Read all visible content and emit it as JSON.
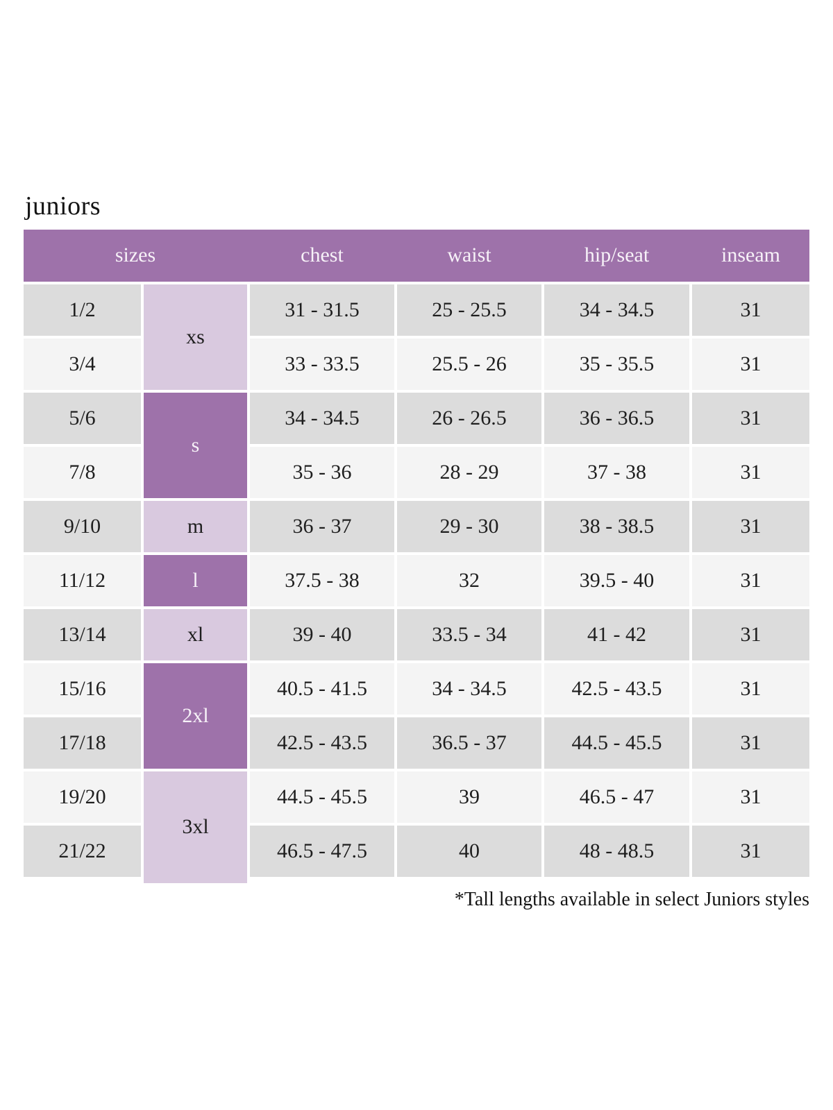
{
  "title": "juniors",
  "footnote": "*Tall lengths available in select Juniors styles",
  "colors": {
    "header_bg": "#9e72aa",
    "size_dark_bg": "#9e72aa",
    "size_light_bg": "#d9c9df",
    "row_gray": "#dcdcdc",
    "row_light": "#f4f4f4",
    "header_text": "#f7f2f8",
    "body_text": "#1e1e1e"
  },
  "table": {
    "headers": [
      "sizes",
      "chest",
      "waist",
      "hip/seat",
      "inseam"
    ],
    "size_groups": [
      {
        "label": "xs",
        "rows_spanned": 2,
        "shade": "light"
      },
      {
        "label": "s",
        "rows_spanned": 2,
        "shade": "dark"
      },
      {
        "label": "m",
        "rows_spanned": 1,
        "shade": "light"
      },
      {
        "label": "l",
        "rows_spanned": 1,
        "shade": "dark"
      },
      {
        "label": "xl",
        "rows_spanned": 1,
        "shade": "light"
      },
      {
        "label": "2xl",
        "rows_spanned": 2,
        "shade": "dark"
      },
      {
        "label": "3xl",
        "rows_spanned": 2,
        "shade": "light"
      }
    ],
    "rows": [
      {
        "size": "1/2",
        "chest": "31 - 31.5",
        "waist": "25 - 25.5",
        "hip_seat": "34 - 34.5",
        "inseam": "31"
      },
      {
        "size": "3/4",
        "chest": "33 - 33.5",
        "waist": "25.5 - 26",
        "hip_seat": "35 - 35.5",
        "inseam": "31"
      },
      {
        "size": "5/6",
        "chest": "34 - 34.5",
        "waist": "26 - 26.5",
        "hip_seat": "36 - 36.5",
        "inseam": "31"
      },
      {
        "size": "7/8",
        "chest": "35 - 36",
        "waist": "28 - 29",
        "hip_seat": "37 - 38",
        "inseam": "31"
      },
      {
        "size": "9/10",
        "chest": "36 - 37",
        "waist": "29 - 30",
        "hip_seat": "38 - 38.5",
        "inseam": "31"
      },
      {
        "size": "11/12",
        "chest": "37.5 - 38",
        "waist": "32",
        "hip_seat": "39.5 - 40",
        "inseam": "31"
      },
      {
        "size": "13/14",
        "chest": "39 - 40",
        "waist": "33.5 - 34",
        "hip_seat": "41 - 42",
        "inseam": "31"
      },
      {
        "size": "15/16",
        "chest": "40.5 - 41.5",
        "waist": "34 - 34.5",
        "hip_seat": "42.5 - 43.5",
        "inseam": "31"
      },
      {
        "size": "17/18",
        "chest": "42.5 - 43.5",
        "waist": "36.5 - 37",
        "hip_seat": "44.5 - 45.5",
        "inseam": "31"
      },
      {
        "size": "19/20",
        "chest": "44.5 - 45.5",
        "waist": "39",
        "hip_seat": "46.5 - 47",
        "inseam": "31"
      },
      {
        "size": "21/22",
        "chest": "46.5 - 47.5",
        "waist": "40",
        "hip_seat": "48 - 48.5",
        "inseam": "31"
      }
    ]
  }
}
